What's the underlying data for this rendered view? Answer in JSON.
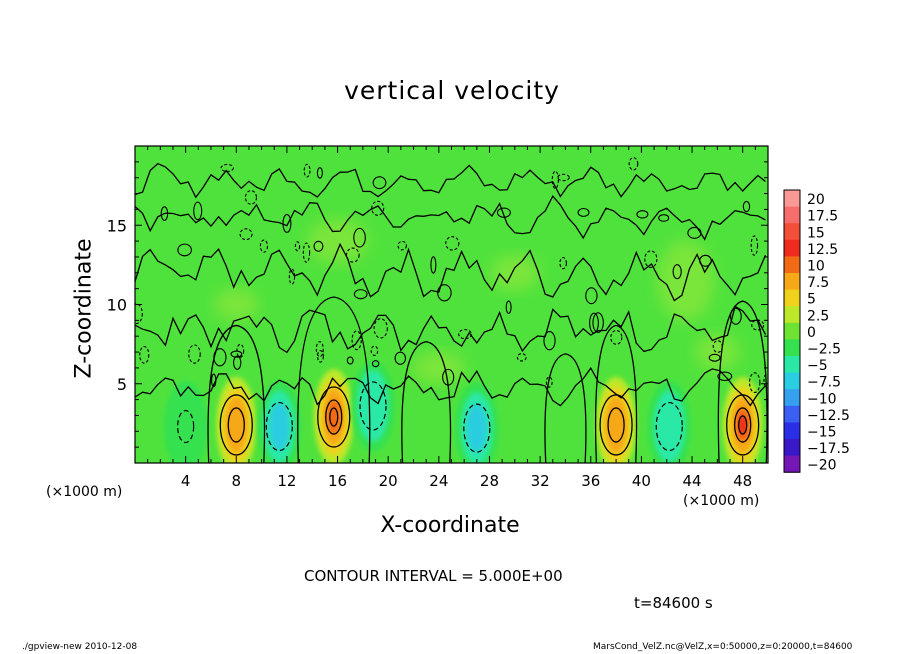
{
  "title": "vertical velocity",
  "xlabel": "X-coordinate",
  "ylabel": "Z-coordinate",
  "x_unit_left": "(×1000 m)",
  "x_unit_right": "(×1000 m)",
  "contour_interval_text": "CONTOUR INTERVAL = 5.000E+00",
  "time_label": "t=84600 s",
  "footer_left": "./gpview-new  2010-12-08",
  "footer_right": "MarsCond_VelZ.nc@VelZ,x=0:50000,z=0:20000,t=84600",
  "chart_data": {
    "type": "heatmap",
    "title": "vertical velocity",
    "xlabel": "X-coordinate",
    "ylabel": "Z-coordinate",
    "xlim": [
      0,
      50
    ],
    "ylim": [
      0,
      20
    ],
    "x_ticks": [
      4,
      8,
      12,
      16,
      20,
      24,
      28,
      32,
      36,
      40,
      44,
      48
    ],
    "y_ticks": [
      5,
      10,
      15
    ],
    "contour_interval": 5,
    "colorbar": {
      "labels": [
        "20",
        "17.5",
        "15",
        "12.5",
        "10",
        "7.5",
        "5",
        "2.5",
        "0",
        "-2.5",
        "-5",
        "-7.5",
        "-10",
        "-12.5",
        "-15",
        "-17.5",
        "-20"
      ],
      "colors": [
        "#f99a96",
        "#f66e6c",
        "#f24f3b",
        "#ee2c1e",
        "#f26a16",
        "#f6a818",
        "#f0d21c",
        "#bde82a",
        "#6ee334",
        "#36e150",
        "#2be8a6",
        "#2bcde0",
        "#34a0ee",
        "#3a5ff2",
        "#2a2ee6",
        "#3a18c8",
        "#7318b4"
      ]
    },
    "features": [
      {
        "kind": "updraft",
        "x": 8.0,
        "z": 2.4,
        "peak": 7.5
      },
      {
        "kind": "updraft",
        "x": 15.7,
        "z": 2.9,
        "peak": 10
      },
      {
        "kind": "updraft",
        "x": 38.0,
        "z": 2.4,
        "peak": 7.5
      },
      {
        "kind": "updraft",
        "x": 48.0,
        "z": 2.4,
        "peak": 12.5
      },
      {
        "kind": "downdraft",
        "x": 11.4,
        "z": 2.3,
        "peak": -7.5
      },
      {
        "kind": "downdraft",
        "x": 18.8,
        "z": 3.6,
        "peak": -5
      },
      {
        "kind": "downdraft",
        "x": 27.0,
        "z": 2.2,
        "peak": -7.5
      },
      {
        "kind": "downdraft",
        "x": 42.2,
        "z": 2.3,
        "peak": -5
      },
      {
        "kind": "downdraft",
        "x": 4.0,
        "z": 2.3,
        "peak": -2.5
      }
    ]
  }
}
